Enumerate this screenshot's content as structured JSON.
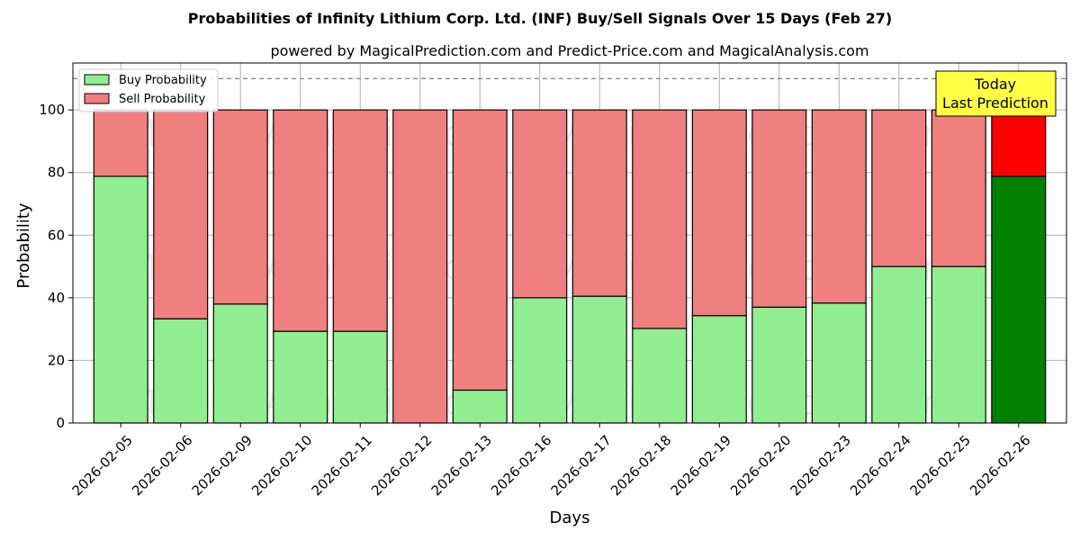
{
  "chart_data": {
    "type": "bar",
    "title": "Probabilities of Infinity Lithium Corp. Ltd. (INF) Buy/Sell Signals Over 15 Days (Feb 27)",
    "subtitle": "powered by MagicalPrediction.com and Predict-Price.com and MagicalAnalysis.com",
    "xlabel": "Days",
    "ylabel": "Probability",
    "ylim": [
      0,
      115
    ],
    "yticks": [
      0,
      20,
      40,
      60,
      80,
      100
    ],
    "reference_line": 110,
    "stacked": true,
    "grid": true,
    "legend_position": "top-left",
    "categories": [
      "2026-02-05",
      "2026-02-06",
      "2026-02-09",
      "2026-02-10",
      "2026-02-11",
      "2026-02-12",
      "2026-02-13",
      "2026-02-16",
      "2026-02-17",
      "2026-02-18",
      "2026-02-19",
      "2026-02-20",
      "2026-02-23",
      "2026-02-24",
      "2026-02-25",
      "2026-02-26"
    ],
    "series": [
      {
        "name": "Buy Probability",
        "color": "#90ee90",
        "highlight_color": "#008000",
        "values": [
          78.8,
          33.3,
          38.0,
          29.3,
          29.3,
          0.0,
          10.5,
          40.0,
          40.5,
          30.2,
          34.3,
          37.0,
          38.3,
          50.0,
          50.0,
          78.8
        ]
      },
      {
        "name": "Sell Probability",
        "color": "#f08080",
        "highlight_color": "#ff0000",
        "values": [
          21.2,
          66.7,
          62.0,
          70.7,
          70.7,
          100.0,
          89.5,
          60.0,
          59.5,
          69.8,
          65.7,
          63.0,
          61.7,
          50.0,
          50.0,
          21.2
        ]
      }
    ],
    "annotation": {
      "lines": [
        "Today",
        "Last Prediction"
      ],
      "box_color": "#ffff44"
    },
    "watermarks": [
      "MagicalAnalysis.com",
      "MagicalPrediction.com"
    ]
  }
}
